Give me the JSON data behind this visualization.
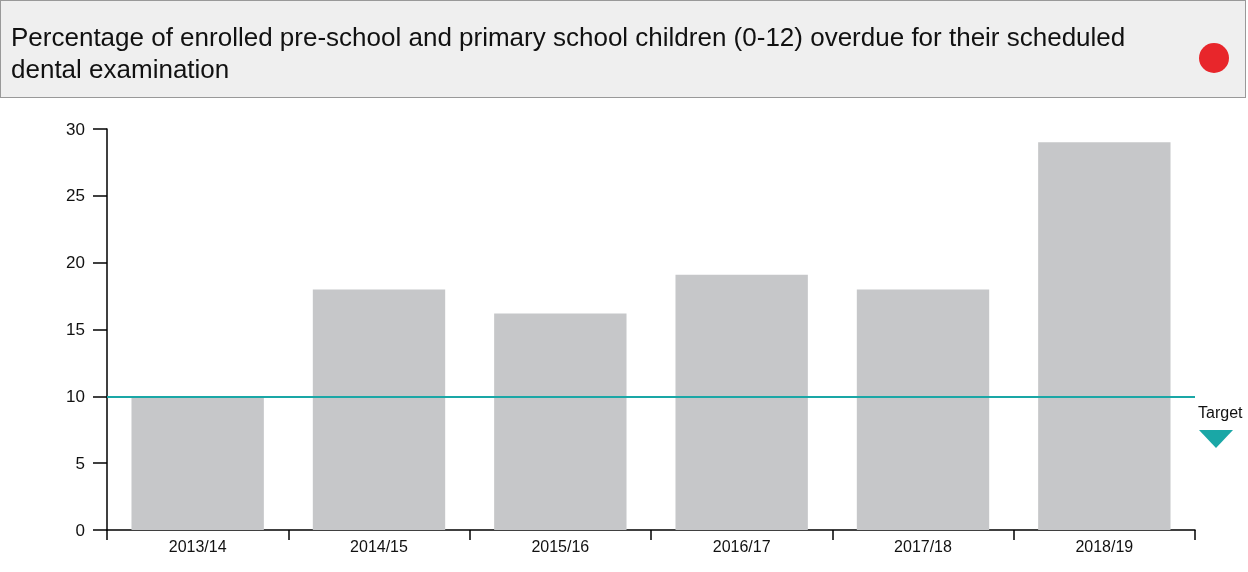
{
  "chart_data": {
    "type": "bar",
    "title": "Percentage of enrolled pre-school and primary school children (0-12) overdue for their scheduled dental examination",
    "categories": [
      "2013/14",
      "2014/15",
      "2015/16",
      "2016/17",
      "2017/18",
      "2018/19"
    ],
    "values": [
      10.0,
      18.0,
      16.2,
      19.1,
      18.0,
      29.0
    ],
    "color": "#c6c7c9",
    "ylim": [
      0,
      30
    ],
    "yticks": [
      0,
      5,
      10,
      15,
      20,
      25,
      30
    ],
    "grid": false,
    "ref_lines": [
      {
        "axis": "y",
        "value": 10,
        "label": "Target",
        "color": "#1aa7a6",
        "line_style": "solid"
      }
    ]
  }
}
